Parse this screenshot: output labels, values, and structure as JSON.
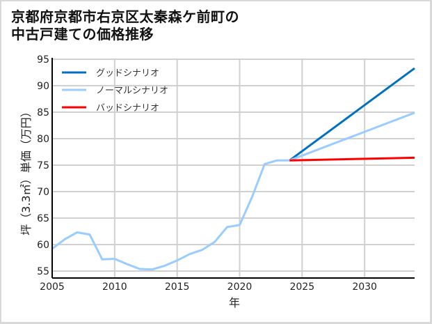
{
  "title_line1": "京都府京都市右京区太秦森ケ前町の",
  "title_line2": "中古戸建ての価格推移",
  "chart_data": {
    "type": "line",
    "title": "京都府京都市右京区太秦森ケ前町の中古戸建ての価格推移",
    "xlabel": "年",
    "ylabel": "坪（3.3㎡）単価（万円）",
    "xlim": [
      2005,
      2034
    ],
    "ylim": [
      53.5,
      95
    ],
    "x_ticks": [
      2005,
      2010,
      2015,
      2020,
      2025,
      2030
    ],
    "y_ticks": [
      55,
      60,
      65,
      70,
      75,
      80,
      85,
      90,
      95
    ],
    "grid": true,
    "legend_position": "upper left",
    "series": [
      {
        "name": "グッドシナリオ",
        "color": "#0070c0",
        "x": [
          2024,
          2034
        ],
        "values": [
          75.9,
          93.3
        ]
      },
      {
        "name": "ノーマルシナリオ",
        "color": "#99ccff",
        "x": [
          2005,
          2006,
          2007,
          2008,
          2009,
          2010,
          2011,
          2012,
          2013,
          2014,
          2015,
          2016,
          2017,
          2018,
          2019,
          2020,
          2021,
          2022,
          2023,
          2024,
          2034
        ],
        "values": [
          59.2,
          61.0,
          62.3,
          61.9,
          57.2,
          57.3,
          56.3,
          55.4,
          55.3,
          56.0,
          57.0,
          58.2,
          59.0,
          60.5,
          63.3,
          63.7,
          69.0,
          75.2,
          75.9,
          75.9,
          84.9
        ]
      },
      {
        "name": "バッドシナリオ",
        "color": "#ff0000",
        "x": [
          2024,
          2034
        ],
        "values": [
          75.9,
          76.4
        ]
      }
    ]
  }
}
